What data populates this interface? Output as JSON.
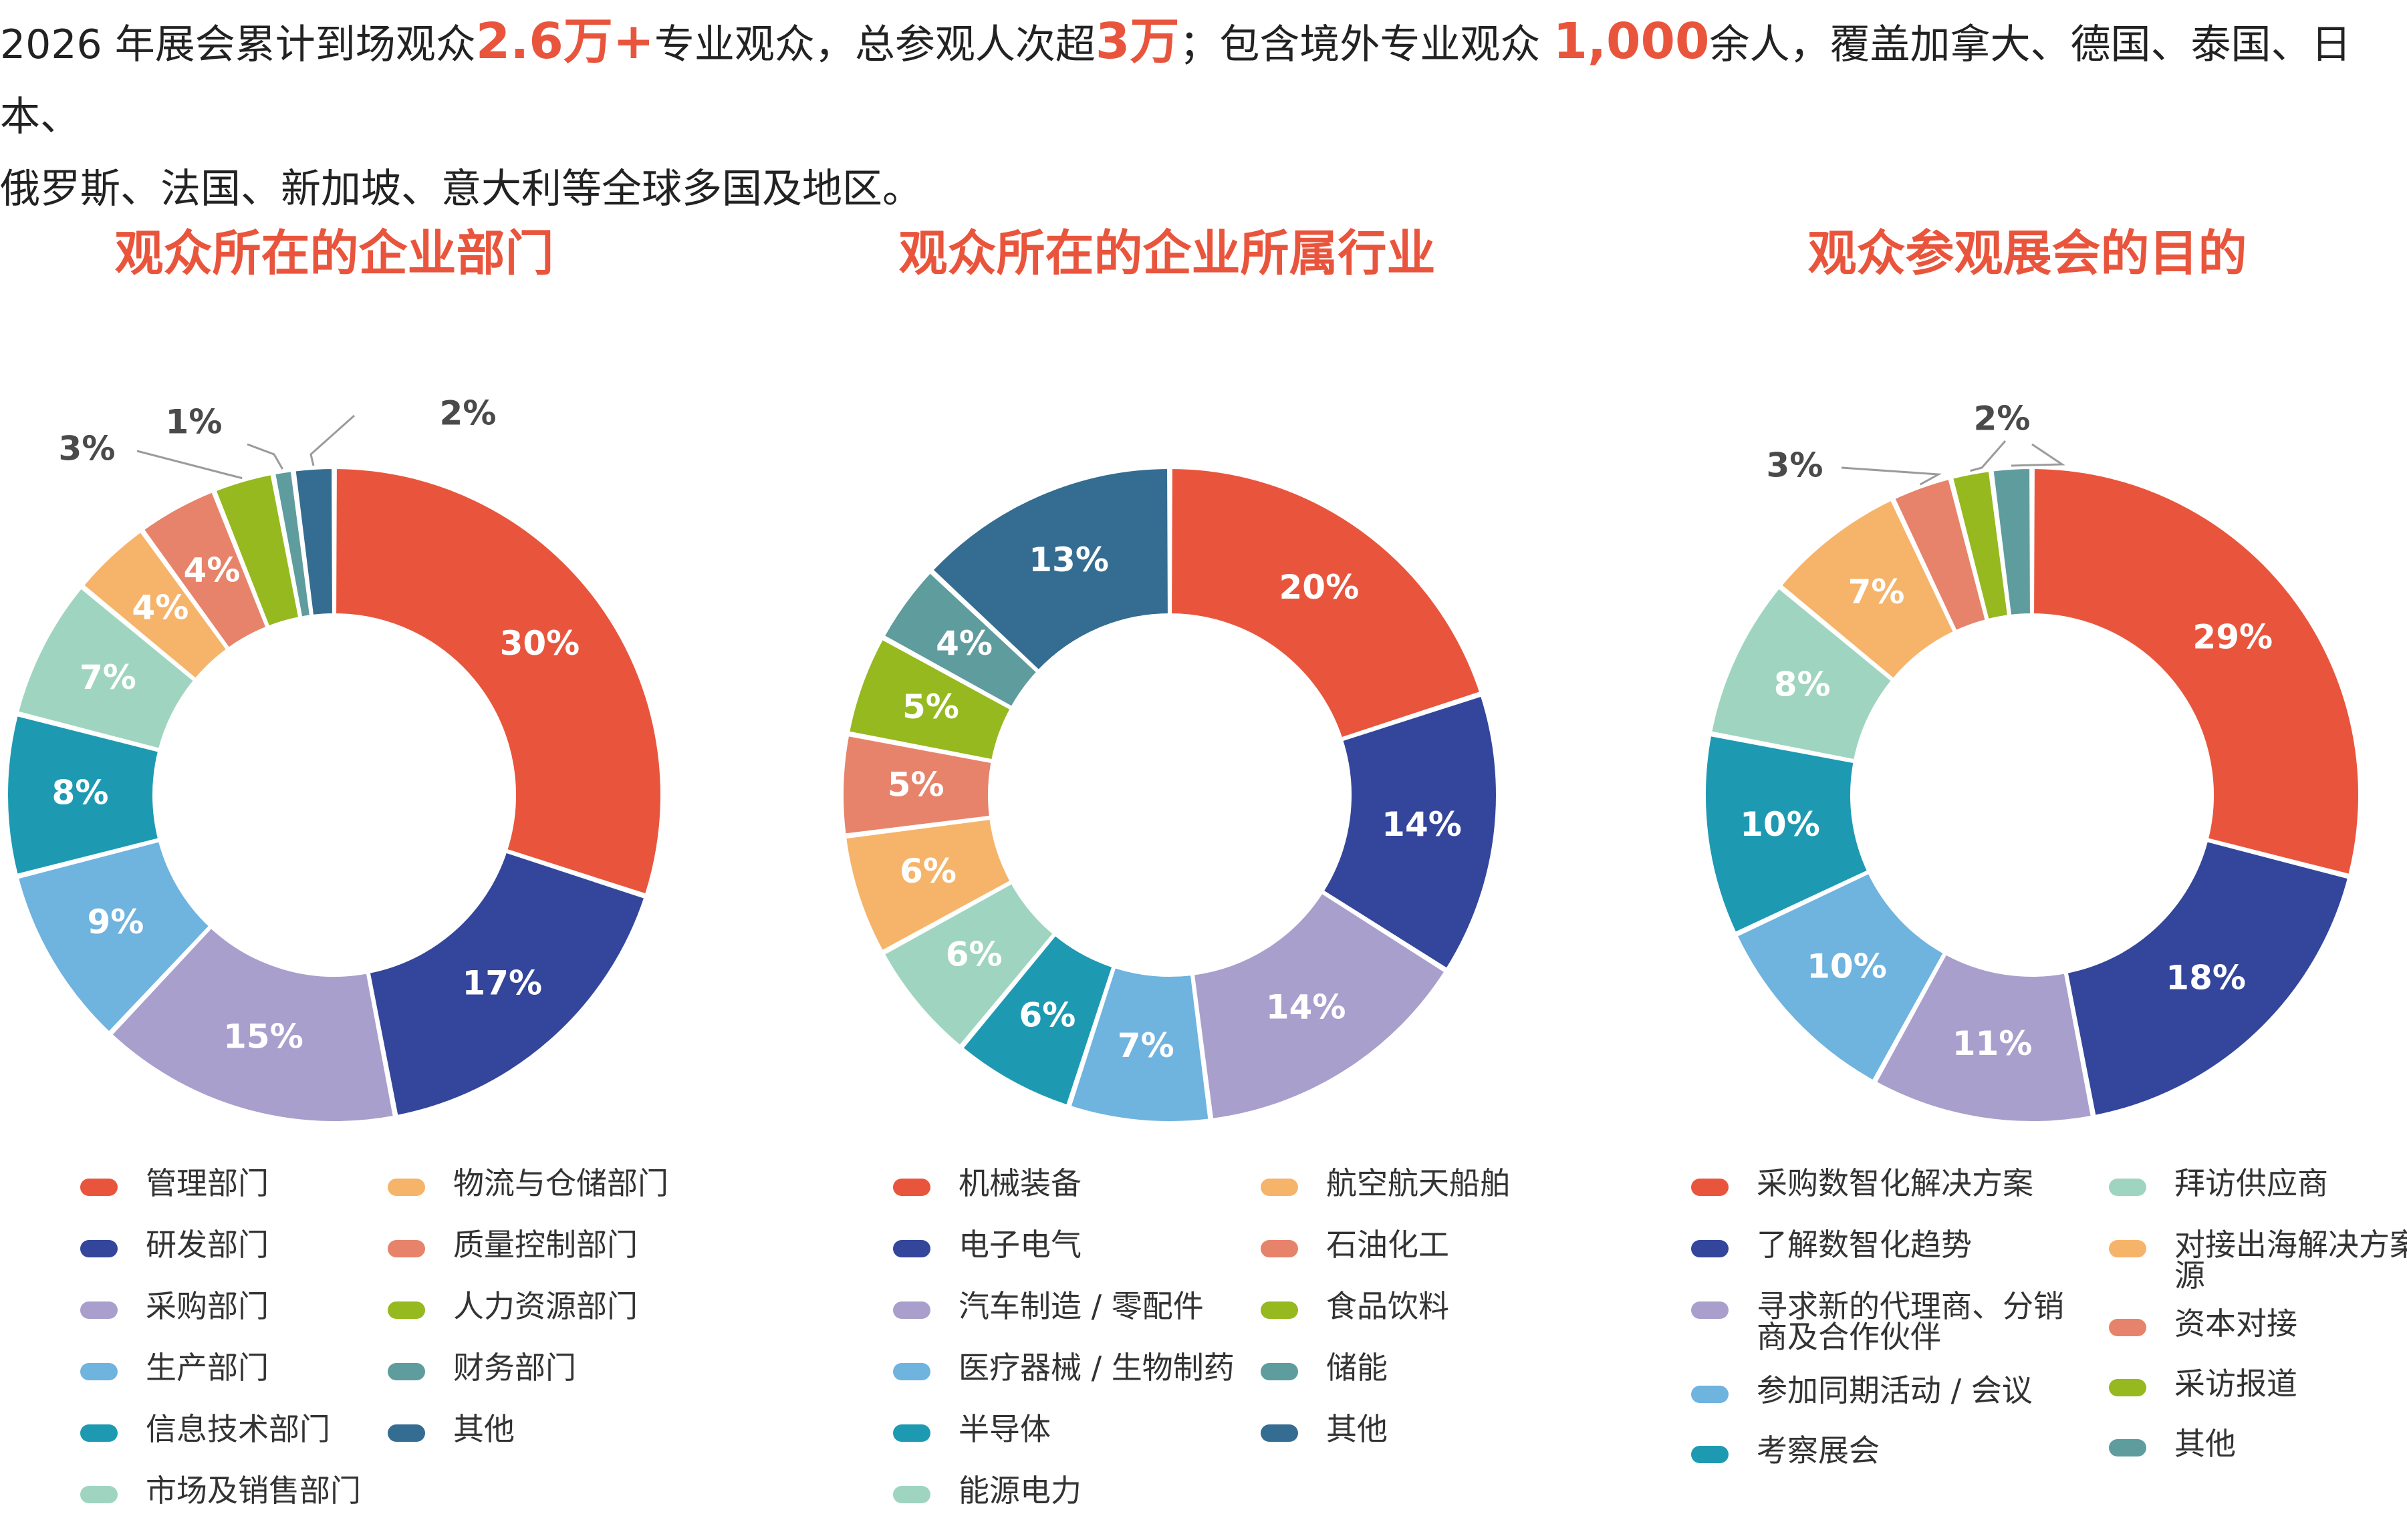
{
  "intro": {
    "p1": "2026 年展会累计到场观众",
    "h1": "2.6万+",
    "p2": "专业观众，总参观人次超",
    "h2": "3万",
    "p3": "；包含境外专业观众 ",
    "h3": "1,000",
    "p4": "余人，覆盖加拿大、德国、泰国、日本、",
    "line2": "俄罗斯、法国、新加坡、意大利等全球多国及地区。"
  },
  "chart_data": [
    {
      "type": "pie",
      "title": "观众所在的企业部门",
      "categories": [
        "管理部门",
        "研发部门",
        "采购部门",
        "生产部门",
        "信息技术部门",
        "市场及销售部门",
        "物流与仓储部门",
        "质量控制部门",
        "人力资源部门",
        "财务部门",
        "其他"
      ],
      "values": [
        30,
        17,
        15,
        9,
        8,
        7,
        4,
        4,
        3,
        1,
        2
      ],
      "colors": [
        "#e9553c",
        "#33469b",
        "#a99fcd",
        "#6fb3df",
        "#1d9ab2",
        "#9fd5c0",
        "#f6b46a",
        "#e7836a",
        "#95b91f",
        "#5f9c9e",
        "#346d91"
      ],
      "labels": [
        "30%",
        "17%",
        "15%",
        "9%",
        "8%",
        "7%",
        "4%",
        "4%",
        "3%",
        "1%",
        "2%"
      ]
    },
    {
      "type": "pie",
      "title": "观众所在的企业所属行业",
      "categories": [
        "机械装备",
        "电子电气",
        "汽车制造 / 零配件",
        "医疗器械 / 生物制药",
        "半导体",
        "能源电力",
        "航空航天船舶",
        "石油化工",
        "食品饮料",
        "储能",
        "其他"
      ],
      "values": [
        20,
        14,
        14,
        7,
        6,
        6,
        6,
        5,
        5,
        4,
        13
      ],
      "colors": [
        "#e9553c",
        "#33469b",
        "#a99fcd",
        "#6fb3df",
        "#1d9ab2",
        "#9fd5c0",
        "#f6b46a",
        "#e7836a",
        "#95b91f",
        "#5f9c9e",
        "#346d91"
      ],
      "labels": [
        "20%",
        "14%",
        "14%",
        "7%",
        "6%",
        "6%",
        "6%",
        "5%",
        "5%",
        "4%",
        "13%"
      ]
    },
    {
      "type": "pie",
      "title": "观众参观展会的目的",
      "categories": [
        "采购数智化解决方案",
        "了解数智化趋势",
        "寻求新的代理商、分销商及合作伙伴",
        "参加同期活动 / 会议",
        "考察展会",
        "拜访供应商",
        "对接出海解决方案相关资源",
        "资本对接",
        "采访报道",
        "其他"
      ],
      "values": [
        29,
        18,
        11,
        10,
        10,
        8,
        7,
        3,
        2,
        2
      ],
      "colors": [
        "#e9553c",
        "#33469b",
        "#a99fcd",
        "#6fb3df",
        "#1d9ab2",
        "#9fd5c0",
        "#f6b46a",
        "#e7836a",
        "#95b91f",
        "#5f9c9e"
      ],
      "labels": [
        "29%",
        "18%",
        "11%",
        "10%",
        "10%",
        "8%",
        "7%",
        "3%",
        "2%",
        "2%"
      ]
    }
  ]
}
